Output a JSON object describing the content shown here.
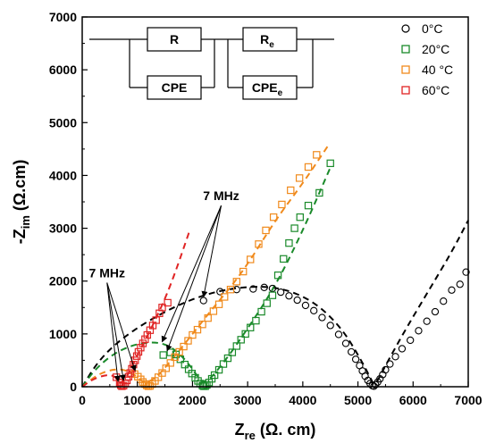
{
  "chart_data": {
    "type": "scatter",
    "xlabel_main": "Z",
    "xlabel_sub": "re",
    "xlabel_unit": " (Ω. cm)",
    "ylabel_prefix": "-Z",
    "ylabel_sub": "im",
    "ylabel_unit": " (Ω.cm)",
    "xlim": [
      0,
      7000
    ],
    "ylim": [
      0,
      7000
    ],
    "xticks": [
      0,
      1000,
      2000,
      3000,
      4000,
      5000,
      6000,
      7000
    ],
    "yticks": [
      0,
      1000,
      2000,
      3000,
      4000,
      5000,
      6000,
      7000
    ],
    "legend_position": "top-right",
    "circuit": {
      "r_label": "R",
      "re_label": "R",
      "re_sub": "e",
      "cpe_label": "CPE",
      "cpee_label": "CPE",
      "cpee_sub": "e"
    },
    "annotations": [
      {
        "text": "7 MHz",
        "x": 2520,
        "y": 3530,
        "targets": [
          [
            2200,
            1700
          ],
          [
            1450,
            850
          ],
          [
            1540,
            680
          ]
        ]
      },
      {
        "text": "7 MHz",
        "x": 450,
        "y": 2070,
        "targets": [
          [
            650,
            100
          ],
          [
            750,
            120
          ],
          [
            960,
            300
          ]
        ]
      }
    ],
    "series": [
      {
        "name": "0°C",
        "color": "#000000",
        "marker": "circle",
        "points": [
          [
            2200,
            1630
          ],
          [
            2500,
            1800
          ],
          [
            2800,
            1840
          ],
          [
            3100,
            1850
          ],
          [
            3300,
            1880
          ],
          [
            3450,
            1860
          ],
          [
            3600,
            1790
          ],
          [
            3750,
            1720
          ],
          [
            3900,
            1640
          ],
          [
            4050,
            1540
          ],
          [
            4200,
            1440
          ],
          [
            4350,
            1310
          ],
          [
            4500,
            1160
          ],
          [
            4650,
            990
          ],
          [
            4780,
            820
          ],
          [
            4880,
            660
          ],
          [
            4960,
            520
          ],
          [
            5030,
            400
          ],
          [
            5080,
            300
          ],
          [
            5130,
            200
          ],
          [
            5180,
            120
          ],
          [
            5220,
            60
          ],
          [
            5260,
            20
          ],
          [
            5290,
            10
          ],
          [
            5320,
            40
          ],
          [
            5360,
            90
          ],
          [
            5400,
            150
          ],
          [
            5450,
            230
          ],
          [
            5500,
            320
          ],
          [
            5580,
            430
          ],
          [
            5680,
            570
          ],
          [
            5800,
            720
          ],
          [
            5950,
            880
          ],
          [
            6100,
            1060
          ],
          [
            6250,
            1240
          ],
          [
            6400,
            1420
          ],
          [
            6550,
            1620
          ],
          [
            6700,
            1830
          ],
          [
            6850,
            1940
          ],
          [
            6960,
            2170
          ]
        ]
      },
      {
        "name": "20°C",
        "color": "#1a8a2a",
        "marker": "square",
        "points": [
          [
            1470,
            600
          ],
          [
            1600,
            650
          ],
          [
            1700,
            610
          ],
          [
            1780,
            520
          ],
          [
            1860,
            420
          ],
          [
            1930,
            330
          ],
          [
            1990,
            250
          ],
          [
            2050,
            170
          ],
          [
            2100,
            110
          ],
          [
            2140,
            60
          ],
          [
            2180,
            25
          ],
          [
            2200,
            10
          ],
          [
            2230,
            10
          ],
          [
            2260,
            35
          ],
          [
            2300,
            80
          ],
          [
            2350,
            150
          ],
          [
            2400,
            220
          ],
          [
            2480,
            320
          ],
          [
            2560,
            430
          ],
          [
            2640,
            540
          ],
          [
            2720,
            650
          ],
          [
            2800,
            770
          ],
          [
            2880,
            890
          ],
          [
            2960,
            1000
          ],
          [
            3050,
            1120
          ],
          [
            3150,
            1250
          ],
          [
            3250,
            1420
          ],
          [
            3350,
            1580
          ],
          [
            3450,
            1730
          ],
          [
            3550,
            2110
          ],
          [
            3650,
            2420
          ],
          [
            3750,
            2720
          ],
          [
            3850,
            3000
          ],
          [
            3950,
            3210
          ],
          [
            4100,
            3430
          ],
          [
            4300,
            3670
          ],
          [
            4500,
            4230
          ]
        ]
      },
      {
        "name": "40 °C",
        "color": "#f08a1c",
        "marker": "square",
        "points": [
          [
            950,
            240
          ],
          [
            1010,
            190
          ],
          [
            1060,
            140
          ],
          [
            1100,
            90
          ],
          [
            1140,
            50
          ],
          [
            1170,
            25
          ],
          [
            1200,
            10
          ],
          [
            1230,
            15
          ],
          [
            1270,
            50
          ],
          [
            1320,
            110
          ],
          [
            1380,
            180
          ],
          [
            1450,
            260
          ],
          [
            1520,
            350
          ],
          [
            1600,
            450
          ],
          [
            1680,
            560
          ],
          [
            1760,
            660
          ],
          [
            1840,
            760
          ],
          [
            1920,
            870
          ],
          [
            2000,
            980
          ],
          [
            2090,
            1080
          ],
          [
            2180,
            1180
          ],
          [
            2280,
            1300
          ],
          [
            2380,
            1430
          ],
          [
            2480,
            1560
          ],
          [
            2580,
            1700
          ],
          [
            2690,
            1840
          ],
          [
            2800,
            1990
          ],
          [
            2920,
            2180
          ],
          [
            3050,
            2410
          ],
          [
            3200,
            2700
          ],
          [
            3330,
            2960
          ],
          [
            3470,
            3210
          ],
          [
            3620,
            3450
          ],
          [
            3780,
            3720
          ],
          [
            3940,
            3950
          ],
          [
            4100,
            4160
          ],
          [
            4250,
            4390
          ]
        ]
      },
      {
        "name": "60°C",
        "color": "#e02424",
        "marker": "square",
        "points": [
          [
            620,
            180
          ],
          [
            680,
            80
          ],
          [
            700,
            30
          ],
          [
            720,
            10
          ],
          [
            750,
            20
          ],
          [
            780,
            60
          ],
          [
            810,
            120
          ],
          [
            840,
            190
          ],
          [
            870,
            260
          ],
          [
            900,
            340
          ],
          [
            930,
            420
          ],
          [
            960,
            500
          ],
          [
            990,
            580
          ],
          [
            1020,
            660
          ],
          [
            1060,
            740
          ],
          [
            1100,
            820
          ],
          [
            1140,
            900
          ],
          [
            1180,
            980
          ],
          [
            1230,
            1070
          ],
          [
            1280,
            1160
          ],
          [
            1340,
            1260
          ],
          [
            1400,
            1390
          ],
          [
            1450,
            1500
          ],
          [
            1550,
            1590
          ]
        ]
      }
    ],
    "fits": [
      {
        "color": "#000000",
        "points": [
          [
            0,
            0
          ],
          [
            300,
            500
          ],
          [
            700,
            900
          ],
          [
            1200,
            1250
          ],
          [
            1800,
            1580
          ],
          [
            2400,
            1800
          ],
          [
            3000,
            1900
          ],
          [
            3600,
            1880
          ],
          [
            4200,
            1620
          ],
          [
            4700,
            1120
          ],
          [
            5050,
            520
          ],
          [
            5250,
            120
          ],
          [
            5300,
            0
          ],
          [
            5550,
            500
          ],
          [
            5900,
            1150
          ],
          [
            6300,
            1850
          ],
          [
            6700,
            2550
          ],
          [
            7000,
            3150
          ]
        ]
      },
      {
        "color": "#1a8a2a",
        "points": [
          [
            0,
            0
          ],
          [
            250,
            350
          ],
          [
            600,
            650
          ],
          [
            1000,
            820
          ],
          [
            1400,
            850
          ],
          [
            1700,
            700
          ],
          [
            2000,
            350
          ],
          [
            2200,
            0
          ],
          [
            2600,
            500
          ],
          [
            3000,
            1100
          ],
          [
            3500,
            1900
          ],
          [
            4000,
            2950
          ],
          [
            4500,
            4150
          ]
        ]
      },
      {
        "color": "#f08a1c",
        "points": [
          [
            0,
            0
          ],
          [
            300,
            250
          ],
          [
            650,
            350
          ],
          [
            900,
            270
          ],
          [
            1200,
            0
          ],
          [
            1700,
            600
          ],
          [
            2300,
            1400
          ],
          [
            2900,
            2150
          ],
          [
            3500,
            3150
          ],
          [
            4000,
            3850
          ],
          [
            4450,
            4550
          ]
        ]
      },
      {
        "color": "#e02424",
        "points": [
          [
            0,
            0
          ],
          [
            200,
            150
          ],
          [
            450,
            230
          ],
          [
            600,
            200
          ],
          [
            720,
            0
          ],
          [
            1000,
            600
          ],
          [
            1300,
            1200
          ],
          [
            1600,
            1900
          ],
          [
            1950,
            2960
          ]
        ]
      }
    ]
  }
}
